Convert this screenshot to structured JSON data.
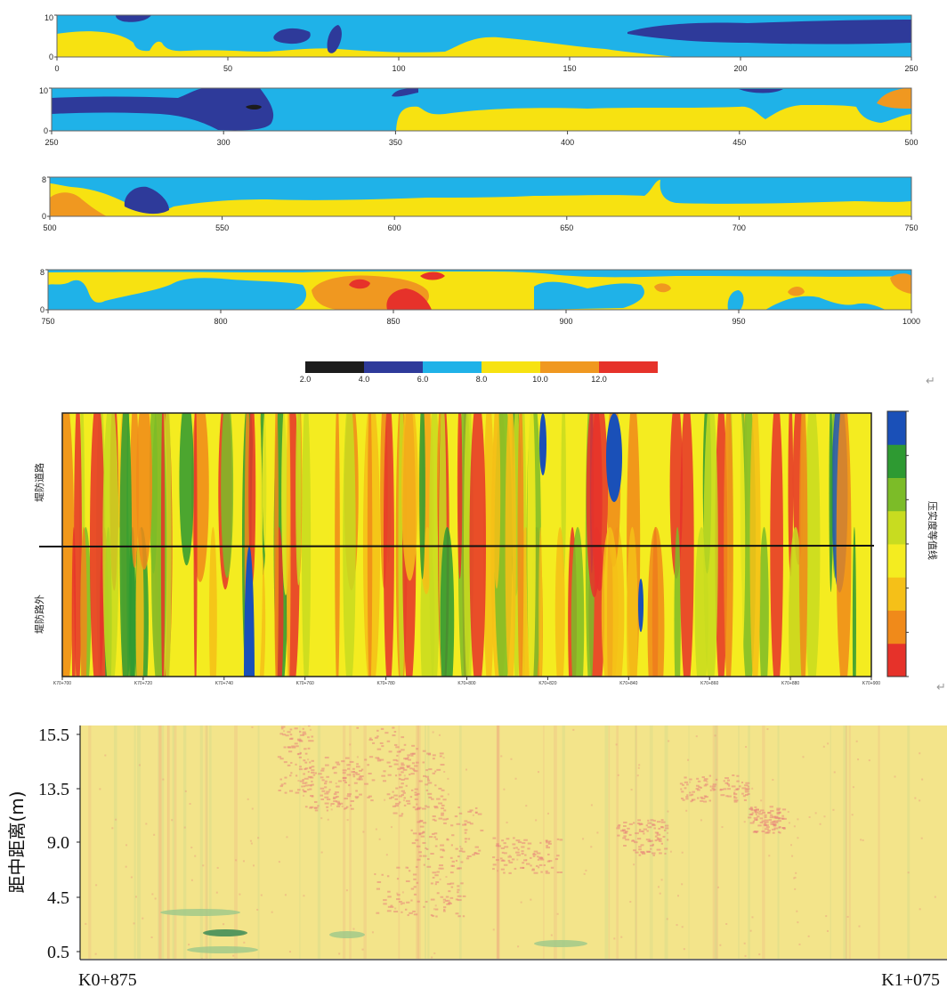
{
  "colors": {
    "c_2_4": "#1c1c1c",
    "c_4_6": "#2e3a9a",
    "c_6_8": "#1fb2e8",
    "c_8_10": "#f7e211",
    "c_10_12": "#f09820",
    "c_12_plus": "#e6322a",
    "panel2_scale": [
      "#e6322a",
      "#f08a1a",
      "#f5c018",
      "#f4ec20",
      "#c8dc20",
      "#7cbc28",
      "#2e9a32",
      "#1a50b8"
    ],
    "panel3_base": "#f3e48a",
    "panel3_red": "#e8847a",
    "panel3_green": "#9cc88a"
  },
  "return_marks": [
    "↵",
    "↵"
  ],
  "chart_data": [
    {
      "type": "heatmap",
      "rows": [
        {
          "xlim": [
            0,
            250
          ],
          "ticks": [
            "0",
            "50",
            "100",
            "150",
            "200",
            "250"
          ],
          "yticks": [
            "0",
            "10"
          ]
        },
        {
          "xlim": [
            250,
            500
          ],
          "ticks": [
            "250",
            "300",
            "350",
            "400",
            "450",
            "500"
          ],
          "yticks": [
            "0",
            "10"
          ]
        },
        {
          "xlim": [
            500,
            750
          ],
          "ticks": [
            "500",
            "550",
            "600",
            "650",
            "700",
            "750"
          ],
          "yticks": [
            "0",
            "8"
          ]
        },
        {
          "xlim": [
            750,
            1000
          ],
          "ticks": [
            "750",
            "800",
            "850",
            "900",
            "950",
            "1000"
          ],
          "yticks": [
            "0",
            "8"
          ]
        }
      ],
      "colorbar": {
        "bounds": [
          2,
          4,
          6,
          8,
          10,
          12,
          14
        ],
        "labels": [
          "2.0",
          "4.0",
          "6.0",
          "8.0",
          "10.0",
          "12.0"
        ]
      }
    },
    {
      "type": "heatmap",
      "ylabel_top": "堤防道路",
      "ylabel_bottom": "堤防路外",
      "colorbar_label": "压实度等值线",
      "xticks": [
        "K70+700",
        "K70+720",
        "K70+740",
        "K70+760",
        "K70+780",
        "K70+800",
        "K70+820",
        "K70+840",
        "K70+860",
        "K70+880",
        "K70+900"
      ]
    },
    {
      "type": "heatmap",
      "ylabel": "距中距离(m)",
      "yticks": [
        "15.5",
        "13.5",
        "9.0",
        "4.5",
        "0.5"
      ],
      "xlabel_left": "K0+875",
      "xlabel_right": "K1+075"
    }
  ]
}
